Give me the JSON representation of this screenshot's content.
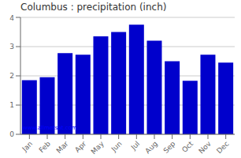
{
  "chart_data": {
    "type": "bar",
    "title": "Columbus : precipitation (inch)",
    "categories": [
      "Jan",
      "Feb",
      "Mar",
      "Apr",
      "May",
      "Jun",
      "Jul",
      "Aug",
      "Sep",
      "Oct",
      "Nov",
      "Dec"
    ],
    "values": [
      1.85,
      1.95,
      2.78,
      2.72,
      3.35,
      3.5,
      3.75,
      3.2,
      2.5,
      1.83,
      2.72,
      2.45
    ],
    "color": "#0000CC",
    "ylim": [
      0,
      4
    ],
    "yticks": [
      0,
      1,
      2,
      3,
      4
    ],
    "grid": true,
    "annotations": [
      "www.allmetsat.com"
    ]
  }
}
